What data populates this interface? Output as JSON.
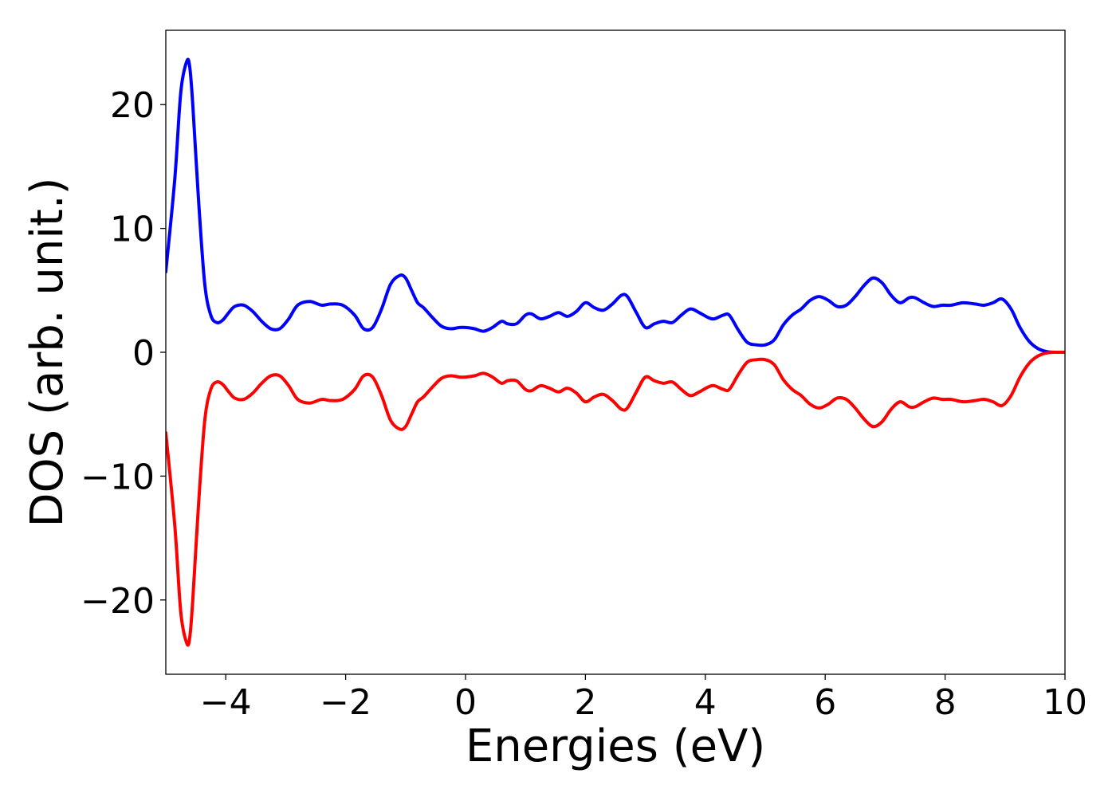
{
  "chart_data": {
    "type": "line",
    "title": "",
    "xlabel": "Energies (eV)",
    "ylabel": "DOS (arb. unit.)",
    "xlim": [
      -5,
      10
    ],
    "ylim": [
      -26,
      26
    ],
    "xticks": [
      -4,
      -2,
      0,
      2,
      4,
      6,
      8,
      10
    ],
    "xtick_labels": [
      "−4",
      "−2",
      "0",
      "2",
      "4",
      "6",
      "8",
      "10"
    ],
    "yticks": [
      20,
      10,
      0,
      -10,
      -20
    ],
    "ytick_labels": [
      "20",
      "10",
      "0",
      "−10",
      "−20"
    ],
    "grid": false,
    "legend": false,
    "colors": {
      "spin_up": "#0000ff",
      "spin_down": "#ff0000"
    },
    "series": [
      {
        "color": "#0000ff",
        "x": [
          -5.0,
          -4.85,
          -4.75,
          -4.65,
          -4.6,
          -4.55,
          -4.45,
          -4.35,
          -4.25,
          -4.15,
          -4.05,
          -3.95,
          -3.85,
          -3.7,
          -3.55,
          -3.4,
          -3.25,
          -3.1,
          -2.95,
          -2.8,
          -2.6,
          -2.4,
          -2.25,
          -2.05,
          -1.85,
          -1.7,
          -1.55,
          -1.4,
          -1.25,
          -1.1,
          -1.0,
          -0.9,
          -0.8,
          -0.7,
          -0.55,
          -0.4,
          -0.25,
          -0.1,
          0.0,
          0.15,
          0.3,
          0.45,
          0.6,
          0.7,
          0.85,
          1.0,
          1.1,
          1.25,
          1.4,
          1.55,
          1.7,
          1.85,
          2.0,
          2.15,
          2.3,
          2.45,
          2.6,
          2.7,
          2.85,
          3.0,
          3.15,
          3.3,
          3.45,
          3.6,
          3.75,
          3.9,
          4.05,
          4.15,
          4.3,
          4.4,
          4.55,
          4.7,
          4.85,
          5.0,
          5.15,
          5.3,
          5.45,
          5.6,
          5.75,
          5.9,
          6.05,
          6.2,
          6.35,
          6.5,
          6.65,
          6.8,
          6.95,
          7.1,
          7.25,
          7.4,
          7.5,
          7.65,
          7.8,
          7.95,
          8.1,
          8.3,
          8.5,
          8.65,
          8.8,
          8.95,
          9.1,
          9.25,
          9.4,
          9.55,
          9.7,
          9.85,
          10.0
        ],
        "y": [
          6.5,
          14.0,
          21.0,
          23.5,
          23.0,
          20.0,
          12.0,
          5.5,
          3.0,
          2.4,
          2.6,
          3.2,
          3.7,
          3.8,
          3.3,
          2.5,
          1.9,
          1.9,
          2.7,
          3.8,
          4.1,
          3.8,
          3.9,
          3.8,
          3.0,
          1.9,
          2.0,
          3.5,
          5.5,
          6.2,
          6.0,
          5.0,
          4.0,
          3.6,
          2.8,
          2.1,
          1.9,
          2.0,
          2.0,
          1.9,
          1.7,
          2.0,
          2.5,
          2.3,
          2.3,
          3.0,
          3.1,
          2.7,
          2.9,
          3.2,
          2.9,
          3.3,
          4.0,
          3.6,
          3.4,
          3.9,
          4.6,
          4.5,
          3.2,
          2.0,
          2.3,
          2.5,
          2.4,
          3.0,
          3.5,
          3.2,
          2.8,
          2.7,
          3.0,
          3.0,
          1.8,
          0.8,
          0.6,
          0.6,
          1.0,
          2.2,
          3.0,
          3.5,
          4.2,
          4.5,
          4.2,
          3.7,
          3.8,
          4.5,
          5.4,
          6.0,
          5.6,
          4.6,
          4.0,
          4.4,
          4.4,
          4.0,
          3.7,
          3.8,
          3.8,
          4.0,
          3.9,
          3.8,
          4.0,
          4.3,
          3.5,
          2.0,
          0.9,
          0.3,
          0.05,
          0.0,
          0.0
        ]
      },
      {
        "color": "#ff0000",
        "x": [
          -5.0,
          -4.85,
          -4.75,
          -4.65,
          -4.6,
          -4.55,
          -4.45,
          -4.35,
          -4.25,
          -4.15,
          -4.05,
          -3.95,
          -3.85,
          -3.7,
          -3.55,
          -3.4,
          -3.25,
          -3.1,
          -2.95,
          -2.8,
          -2.6,
          -2.4,
          -2.25,
          -2.05,
          -1.85,
          -1.7,
          -1.55,
          -1.4,
          -1.25,
          -1.1,
          -1.0,
          -0.9,
          -0.8,
          -0.7,
          -0.55,
          -0.4,
          -0.25,
          -0.1,
          0.0,
          0.15,
          0.3,
          0.45,
          0.6,
          0.7,
          0.85,
          1.0,
          1.1,
          1.25,
          1.4,
          1.55,
          1.7,
          1.85,
          2.0,
          2.15,
          2.3,
          2.45,
          2.6,
          2.7,
          2.85,
          3.0,
          3.15,
          3.3,
          3.45,
          3.6,
          3.75,
          3.9,
          4.05,
          4.15,
          4.3,
          4.4,
          4.55,
          4.7,
          4.85,
          5.0,
          5.15,
          5.3,
          5.45,
          5.6,
          5.75,
          5.9,
          6.05,
          6.2,
          6.35,
          6.5,
          6.65,
          6.8,
          6.95,
          7.1,
          7.25,
          7.4,
          7.5,
          7.65,
          7.8,
          7.95,
          8.1,
          8.3,
          8.5,
          8.65,
          8.8,
          8.95,
          9.1,
          9.25,
          9.4,
          9.55,
          9.7,
          9.85,
          10.0
        ],
        "y": [
          -6.5,
          -14.0,
          -21.0,
          -23.5,
          -23.0,
          -20.0,
          -12.0,
          -5.5,
          -3.0,
          -2.4,
          -2.6,
          -3.2,
          -3.7,
          -3.8,
          -3.3,
          -2.5,
          -1.9,
          -1.9,
          -2.7,
          -3.8,
          -4.1,
          -3.8,
          -3.9,
          -3.8,
          -3.0,
          -1.9,
          -2.0,
          -3.5,
          -5.5,
          -6.2,
          -6.0,
          -5.0,
          -4.0,
          -3.6,
          -2.8,
          -2.1,
          -1.9,
          -2.0,
          -2.0,
          -1.9,
          -1.7,
          -2.0,
          -2.5,
          -2.3,
          -2.3,
          -3.0,
          -3.1,
          -2.7,
          -2.9,
          -3.2,
          -2.9,
          -3.3,
          -4.0,
          -3.6,
          -3.4,
          -3.9,
          -4.6,
          -4.5,
          -3.2,
          -2.0,
          -2.3,
          -2.5,
          -2.4,
          -3.0,
          -3.5,
          -3.2,
          -2.8,
          -2.7,
          -3.0,
          -3.0,
          -1.8,
          -0.8,
          -0.6,
          -0.6,
          -1.0,
          -2.2,
          -3.0,
          -3.5,
          -4.2,
          -4.5,
          -4.2,
          -3.7,
          -3.8,
          -4.5,
          -5.4,
          -6.0,
          -5.6,
          -4.6,
          -4.0,
          -4.4,
          -4.4,
          -4.0,
          -3.7,
          -3.8,
          -3.8,
          -4.0,
          -3.9,
          -3.8,
          -4.0,
          -4.3,
          -3.5,
          -2.0,
          -0.9,
          -0.3,
          -0.05,
          0.0,
          0.0
        ]
      }
    ]
  }
}
